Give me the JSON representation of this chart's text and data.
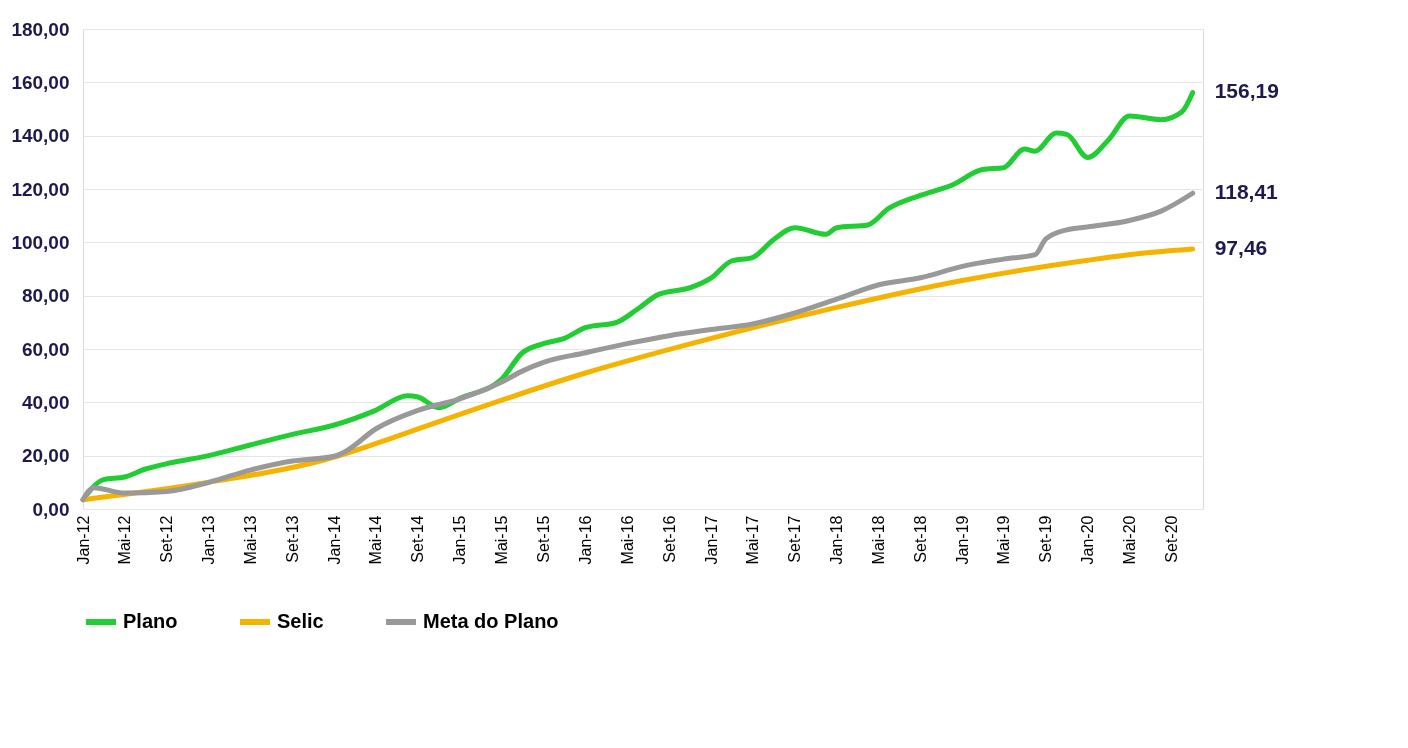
{
  "chart_data": {
    "type": "line",
    "legend": "bottom left",
    "grid": "y",
    "line_style": "solid",
    "marker": "none",
    "ylim": [
      0,
      180
    ],
    "yticks": [
      {
        "value": 0,
        "label": "0,00"
      },
      {
        "value": 20,
        "label": "20,00"
      },
      {
        "value": 40,
        "label": "40,00"
      },
      {
        "value": 60,
        "label": "60,00"
      },
      {
        "value": 80,
        "label": "80,00"
      },
      {
        "value": 100,
        "label": "100,00"
      },
      {
        "value": 120,
        "label": "120,00"
      },
      {
        "value": 140,
        "label": "140,00"
      },
      {
        "value": 160,
        "label": "160,00"
      },
      {
        "value": 180,
        "label": "180,00"
      }
    ],
    "xlim": [
      "2012-01",
      "2020-12"
    ],
    "xticks": [
      {
        "value": "2012-01",
        "label": "Jan-12"
      },
      {
        "value": "2012-05",
        "label": "Mai-12"
      },
      {
        "value": "2012-09",
        "label": "Set-12"
      },
      {
        "value": "2013-01",
        "label": "Jan-13"
      },
      {
        "value": "2013-05",
        "label": "Mai-13"
      },
      {
        "value": "2013-09",
        "label": "Set-13"
      },
      {
        "value": "2014-01",
        "label": "Jan-14"
      },
      {
        "value": "2014-05",
        "label": "Mai-14"
      },
      {
        "value": "2014-09",
        "label": "Set-14"
      },
      {
        "value": "2015-01",
        "label": "Jan-15"
      },
      {
        "value": "2015-05",
        "label": "Mai-15"
      },
      {
        "value": "2015-09",
        "label": "Set-15"
      },
      {
        "value": "2016-01",
        "label": "Jan-16"
      },
      {
        "value": "2016-05",
        "label": "Mai-16"
      },
      {
        "value": "2016-09",
        "label": "Set-16"
      },
      {
        "value": "2017-01",
        "label": "Jan-17"
      },
      {
        "value": "2017-05",
        "label": "Mai-17"
      },
      {
        "value": "2017-09",
        "label": "Set-17"
      },
      {
        "value": "2018-01",
        "label": "Jan-18"
      },
      {
        "value": "2018-05",
        "label": "Mai-18"
      },
      {
        "value": "2018-09",
        "label": "Set-18"
      },
      {
        "value": "2019-01",
        "label": "Jan-19"
      },
      {
        "value": "2019-05",
        "label": "Mai-19"
      },
      {
        "value": "2019-09",
        "label": "Set-19"
      },
      {
        "value": "2020-01",
        "label": "Jan-20"
      },
      {
        "value": "2020-05",
        "label": "Mai-20"
      },
      {
        "value": "2020-09",
        "label": "Set-20"
      }
    ],
    "series": [
      {
        "name": "Plano",
        "color": "#22cc33",
        "x": [
          "2012-01",
          "2012-03",
          "2012-05",
          "2012-07",
          "2012-09",
          "2013-01",
          "2013-05",
          "2013-09",
          "2014-01",
          "2014-05",
          "2014-08",
          "2014-09",
          "2014-11",
          "2015-01",
          "2015-05",
          "2015-07",
          "2015-09",
          "2015-11",
          "2016-01",
          "2016-04",
          "2016-06",
          "2016-08",
          "2016-11",
          "2017-01",
          "2017-03",
          "2017-05",
          "2017-07",
          "2017-09",
          "2017-12",
          "2018-01",
          "2018-04",
          "2018-06",
          "2018-09",
          "2018-12",
          "2019-03",
          "2019-05",
          "2019-07",
          "2019-08",
          "2019-10",
          "2019-11",
          "2020-01",
          "2020-03",
          "2020-05",
          "2020-08",
          "2020-10",
          "2020-11"
        ],
        "values": [
          3.5,
          11,
          12,
          15,
          17,
          20,
          24,
          28,
          31.5,
          37,
          42.5,
          42,
          38,
          41.5,
          48.5,
          58.5,
          62,
          64,
          68,
          70,
          75,
          80.5,
          83,
          86.7,
          93,
          94.3,
          101,
          105.5,
          103,
          105.5,
          106.5,
          112.7,
          117.6,
          121.4,
          127.3,
          128,
          135,
          134.2,
          141,
          140.5,
          131.8,
          138.4,
          147.4,
          146,
          149,
          156.19
        ],
        "value_labels": [
          null,
          null,
          null,
          null,
          null,
          null,
          null,
          null,
          null,
          null,
          null,
          null,
          null,
          null,
          null,
          null,
          null,
          null,
          null,
          null,
          null,
          null,
          null,
          null,
          null,
          null,
          null,
          null,
          null,
          null,
          null,
          null,
          null,
          null,
          null,
          null,
          null,
          null,
          null,
          null,
          null,
          null,
          null,
          null,
          null,
          "156,19"
        ]
      },
      {
        "name": "Selic",
        "color": "#f5b300",
        "x": [
          "2012-01",
          "2013-01",
          "2014-01",
          "2014-05",
          "2015-01",
          "2016-01",
          "2017-01",
          "2018-01",
          "2019-01",
          "2020-01",
          "2020-06",
          "2020-11"
        ],
        "values": [
          3.5,
          10,
          19.5,
          24.5,
          35.5,
          51,
          64,
          75.6,
          85.7,
          93.3,
          95.8,
          97.46
        ],
        "value_labels": [
          null,
          null,
          null,
          null,
          null,
          null,
          null,
          null,
          null,
          null,
          null,
          "97,46"
        ]
      },
      {
        "name": "Meta do Plano",
        "color": "#999999",
        "x": [
          "2012-01",
          "2012-02",
          "2012-05",
          "2012-09",
          "2013-01",
          "2013-05",
          "2013-09",
          "2014-01",
          "2014-02",
          "2014-05",
          "2014-09",
          "2015-01",
          "2015-05",
          "2015-07",
          "2015-09",
          "2016-01",
          "2016-05",
          "2016-09",
          "2017-01",
          "2017-05",
          "2017-09",
          "2018-01",
          "2018-05",
          "2018-09",
          "2019-01",
          "2019-05",
          "2019-08",
          "2019-09",
          "2019-11",
          "2020-01",
          "2020-05",
          "2020-08",
          "2020-11"
        ],
        "values": [
          3.5,
          8,
          6,
          6.6,
          10,
          14.6,
          18,
          19.8,
          21.5,
          30,
          37,
          41.3,
          47.5,
          51.7,
          55,
          58.6,
          62,
          65,
          67.3,
          69.4,
          73.5,
          78.7,
          84,
          86.7,
          91,
          93.7,
          95.4,
          101.3,
          104.7,
          105.8,
          108.2,
          111.7,
          118.41
        ],
        "value_labels": [
          null,
          null,
          null,
          null,
          null,
          null,
          null,
          null,
          null,
          null,
          null,
          null,
          null,
          null,
          null,
          null,
          null,
          null,
          null,
          null,
          null,
          null,
          null,
          null,
          null,
          null,
          null,
          null,
          null,
          null,
          null,
          null,
          "118,41"
        ]
      }
    ]
  }
}
